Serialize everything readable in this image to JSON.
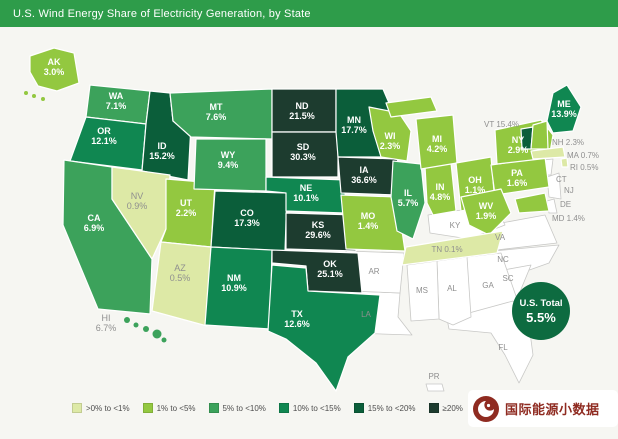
{
  "header": {
    "title": "U.S. Wind Energy Share of Electricity Generation, by State",
    "bg_color": "#2e9c4a"
  },
  "us_total": {
    "label": "U.S. Total",
    "value": "5.5%",
    "color": "#0d6b40"
  },
  "watermark": {
    "text": "国际能源小数据",
    "color": "#8f2b21"
  },
  "chart_data": {
    "type": "heatmap",
    "subtype": "choropleth-us-states",
    "title": "U.S. Wind Energy Share of Electricity Generation, by State",
    "unit": "% of electricity generation",
    "us_total_percent": 5.5,
    "no_data_color": "#ffffff",
    "legend_position": "bottom",
    "legend": [
      {
        "label": ">0% to <1%",
        "color": "#dde9a6"
      },
      {
        "label": "1% to <5%",
        "color": "#93c840"
      },
      {
        "label": "5% to <10%",
        "color": "#3ca25b"
      },
      {
        "label": "10% to <15%",
        "color": "#108751"
      },
      {
        "label": "15% to <20%",
        "color": "#0b5e3a"
      },
      {
        "label": "≥20%",
        "color": "#1d3c2f"
      }
    ],
    "states": [
      {
        "abbr": "AK",
        "value": 3.0,
        "bucket": 1
      },
      {
        "abbr": "WA",
        "value": 7.1,
        "bucket": 2
      },
      {
        "abbr": "OR",
        "value": 12.1,
        "bucket": 3
      },
      {
        "abbr": "CA",
        "value": 6.9,
        "bucket": 2
      },
      {
        "abbr": "ID",
        "value": 15.2,
        "bucket": 4
      },
      {
        "abbr": "NV",
        "value": 0.9,
        "bucket": 0
      },
      {
        "abbr": "UT",
        "value": 2.2,
        "bucket": 1
      },
      {
        "abbr": "AZ",
        "value": 0.5,
        "bucket": 0
      },
      {
        "abbr": "MT",
        "value": 7.6,
        "bucket": 2
      },
      {
        "abbr": "WY",
        "value": 9.4,
        "bucket": 2
      },
      {
        "abbr": "CO",
        "value": 17.3,
        "bucket": 4
      },
      {
        "abbr": "NM",
        "value": 10.9,
        "bucket": 3
      },
      {
        "abbr": "ND",
        "value": 21.5,
        "bucket": 5
      },
      {
        "abbr": "SD",
        "value": 30.3,
        "bucket": 5
      },
      {
        "abbr": "NE",
        "value": 10.1,
        "bucket": 3
      },
      {
        "abbr": "KS",
        "value": 29.6,
        "bucket": 5
      },
      {
        "abbr": "OK",
        "value": 25.1,
        "bucket": 5
      },
      {
        "abbr": "TX",
        "value": 12.6,
        "bucket": 3
      },
      {
        "abbr": "MN",
        "value": 17.7,
        "bucket": 4
      },
      {
        "abbr": "IA",
        "value": 36.6,
        "bucket": 5
      },
      {
        "abbr": "MO",
        "value": 1.4,
        "bucket": 1
      },
      {
        "abbr": "WI",
        "value": 2.3,
        "bucket": 1
      },
      {
        "abbr": "IL",
        "value": 5.7,
        "bucket": 2
      },
      {
        "abbr": "IN",
        "value": 4.8,
        "bucket": 1
      },
      {
        "abbr": "MI",
        "value": 4.2,
        "bucket": 1
      },
      {
        "abbr": "OH",
        "value": 1.1,
        "bucket": 1
      },
      {
        "abbr": "PA",
        "value": 1.6,
        "bucket": 1
      },
      {
        "abbr": "WV",
        "value": 1.9,
        "bucket": 1
      },
      {
        "abbr": "NY",
        "value": 2.9,
        "bucket": 1
      },
      {
        "abbr": "VT",
        "value": 15.4,
        "bucket": 4
      },
      {
        "abbr": "NH",
        "value": 2.3,
        "bucket": 1
      },
      {
        "abbr": "ME",
        "value": 13.9,
        "bucket": 3
      },
      {
        "abbr": "MA",
        "value": 0.7,
        "bucket": 0
      },
      {
        "abbr": "RI",
        "value": 0.5,
        "bucket": 0
      },
      {
        "abbr": "CT",
        "value": null,
        "bucket": null
      },
      {
        "abbr": "NJ",
        "value": null,
        "bucket": null
      },
      {
        "abbr": "DE",
        "value": null,
        "bucket": null
      },
      {
        "abbr": "MD",
        "value": 1.4,
        "bucket": 1
      },
      {
        "abbr": "VA",
        "value": null,
        "bucket": null
      },
      {
        "abbr": "NC",
        "value": null,
        "bucket": null
      },
      {
        "abbr": "SC",
        "value": null,
        "bucket": null
      },
      {
        "abbr": "GA",
        "value": null,
        "bucket": null
      },
      {
        "abbr": "FL",
        "value": null,
        "bucket": null
      },
      {
        "abbr": "AL",
        "value": null,
        "bucket": null
      },
      {
        "abbr": "MS",
        "value": null,
        "bucket": null
      },
      {
        "abbr": "LA",
        "value": null,
        "bucket": null
      },
      {
        "abbr": "AR",
        "value": null,
        "bucket": null
      },
      {
        "abbr": "TN",
        "value": 0.1,
        "bucket": 0
      },
      {
        "abbr": "KY",
        "value": null,
        "bucket": null
      },
      {
        "abbr": "HI",
        "value": 6.7,
        "bucket": 2
      },
      {
        "abbr": "PR",
        "value": null,
        "bucket": null
      }
    ]
  }
}
